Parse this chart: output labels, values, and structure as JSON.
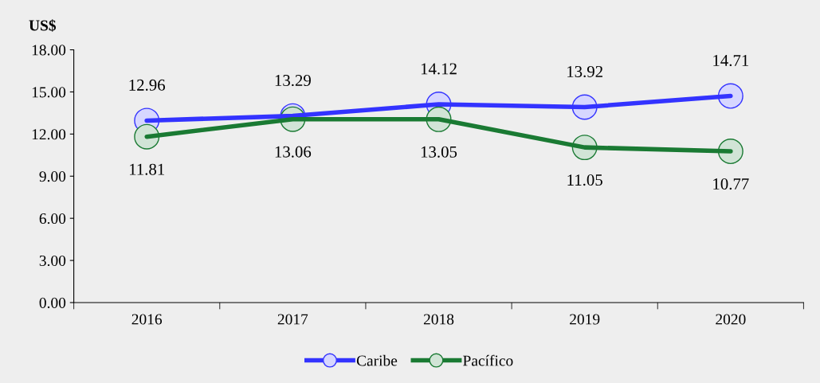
{
  "chart_data": {
    "type": "line",
    "ylabel": "US$",
    "categories": [
      "2016",
      "2017",
      "2018",
      "2019",
      "2020"
    ],
    "series": [
      {
        "name": "Caribe",
        "color": "#3333ff",
        "values": [
          12.96,
          13.29,
          14.12,
          13.92,
          14.71
        ]
      },
      {
        "name": "Pacífico",
        "color": "#1a7a33",
        "values": [
          11.81,
          13.06,
          13.05,
          11.05,
          10.77
        ]
      }
    ],
    "ylim": [
      0,
      18
    ],
    "yticks": [
      {
        "value": 0,
        "label": "0.00"
      },
      {
        "value": 3,
        "label": "3.00"
      },
      {
        "value": 6,
        "label": "6.00"
      },
      {
        "value": 9,
        "label": "9.00"
      },
      {
        "value": 12,
        "label": "12.00"
      },
      {
        "value": 15,
        "label": "15.00"
      },
      {
        "value": 18,
        "label": "18.00"
      }
    ],
    "data_labels": true,
    "marker": "circle",
    "line_style": "solid",
    "legend": "bottom",
    "grid": false
  }
}
